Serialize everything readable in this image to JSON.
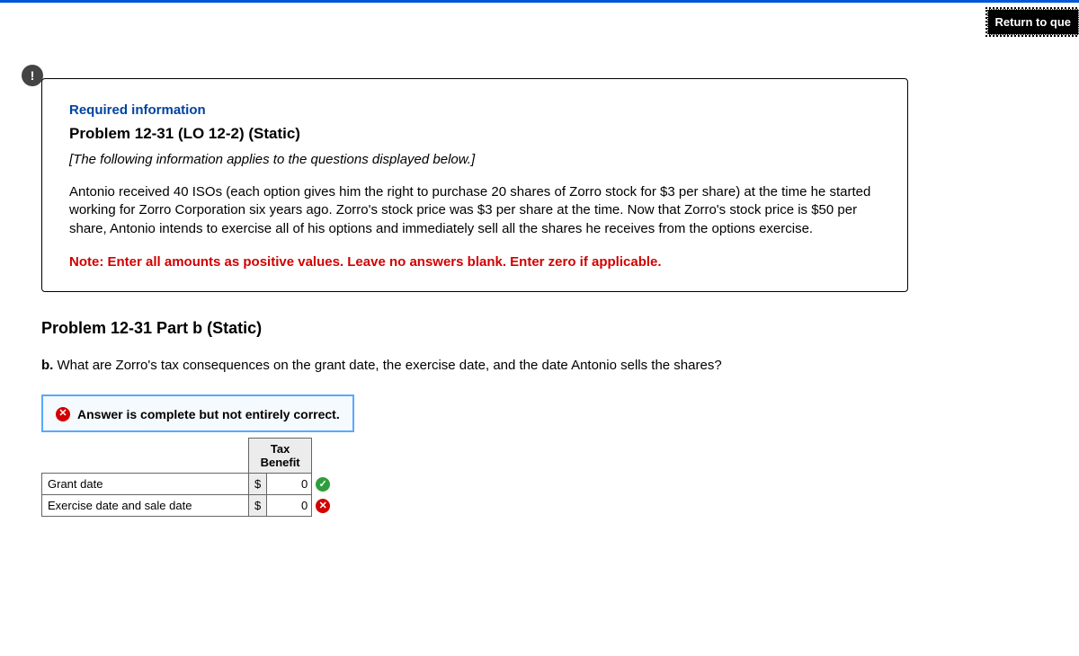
{
  "header": {
    "return_label": "Return to que"
  },
  "alert_glyph": "!",
  "info": {
    "required_label": "Required information",
    "problem_title": "Problem 12-31 (LO 12-2) (Static)",
    "applies_text": "[The following information applies to the questions displayed below.]",
    "body": "Antonio received 40 ISOs (each option gives him the right to purchase 20 shares of Zorro stock for $3 per share) at the time he started working for Zorro Corporation six years ago. Zorro's stock price was $3 per share at the time. Now that Zorro's stock price is $50 per share, Antonio intends to exercise all of his options and immediately sell all the shares he receives from the options exercise.",
    "note": "Note: Enter all amounts as positive values. Leave no answers blank. Enter zero if applicable."
  },
  "part": {
    "title": "Problem 12-31 Part b (Static)",
    "q_prefix": "b.",
    "q_text": " What are Zorro's tax consequences on the grant date, the exercise date, and the date Antonio sells the shares?"
  },
  "feedback": {
    "message": "Answer is complete but not entirely correct."
  },
  "table": {
    "col_header": "Tax Benefit",
    "currency": "$",
    "rows": [
      {
        "label": "Grant date",
        "value": "0",
        "status": "correct"
      },
      {
        "label": "Exercise date and sale date",
        "value": "0",
        "status": "incorrect"
      }
    ]
  },
  "colors": {
    "accent": "#0058d4",
    "link_blue": "#0043a0",
    "error_red": "#d20000",
    "ok_green": "#2e9e3b",
    "box_border": "#59a8ff",
    "box_bg": "#f5faff",
    "th_bg": "#ececec"
  }
}
